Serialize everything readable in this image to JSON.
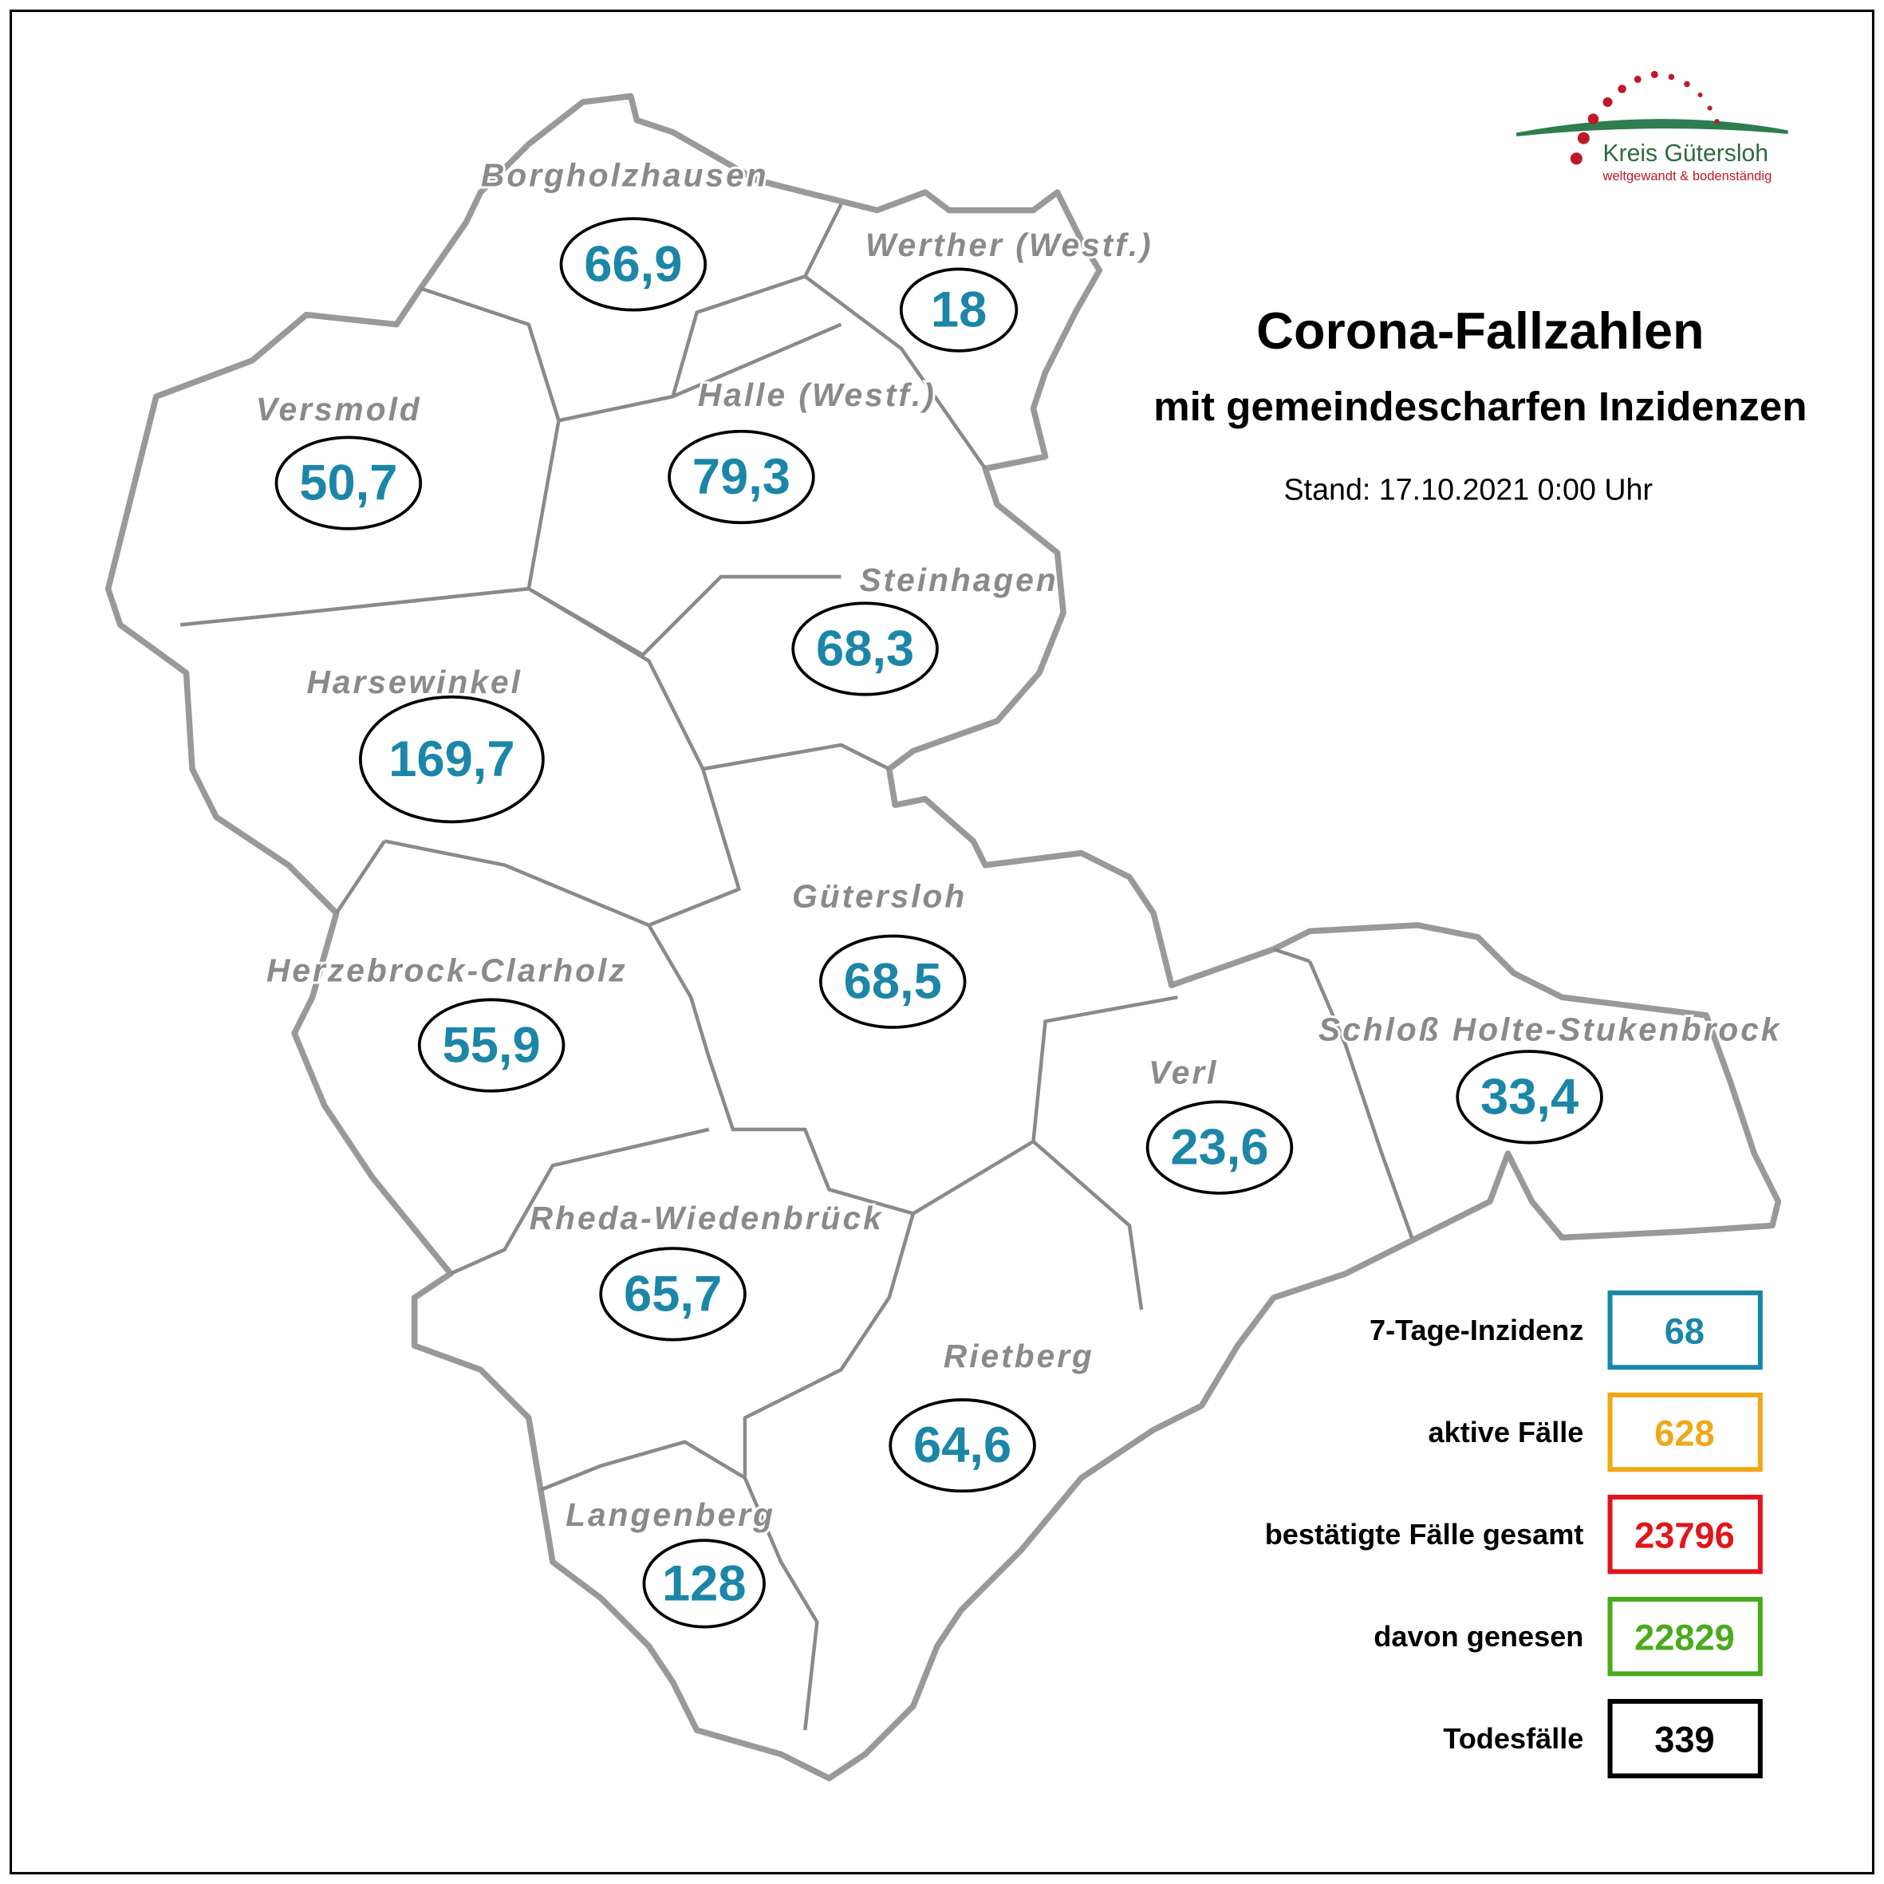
{
  "header": {
    "title": "Corona-Fallzahlen",
    "subtitle": "mit gemeindescharfen Inzidenzen",
    "stand": "Stand: 17.10.2021 0:00 Uhr"
  },
  "logo": {
    "name": "Kreis Gütersloh",
    "slogan": "weltgewandt & bodenständig"
  },
  "region_color": "#1b86a8",
  "regions": [
    {
      "name": "Borgholzhausen",
      "incidence": "66,9"
    },
    {
      "name": "Werther (Westf.)",
      "incidence": "18"
    },
    {
      "name": "Versmold",
      "incidence": "50,7"
    },
    {
      "name": "Halle (Westf.)",
      "incidence": "79,3"
    },
    {
      "name": "Steinhagen",
      "incidence": "68,3"
    },
    {
      "name": "Harsewinkel",
      "incidence": "169,7"
    },
    {
      "name": "Gütersloh",
      "incidence": "68,5"
    },
    {
      "name": "Herzebrock-Clarholz",
      "incidence": "55,9"
    },
    {
      "name": "Verl",
      "incidence": "23,6"
    },
    {
      "name": "Schloß Holte-Stukenbrock",
      "incidence": "33,4"
    },
    {
      "name": "Rheda-Wiedenbrück",
      "incidence": "65,7"
    },
    {
      "name": "Rietberg",
      "incidence": "64,6"
    },
    {
      "name": "Langenberg",
      "incidence": "128"
    }
  ],
  "legend": [
    {
      "label": "7-Tage-Inzidenz",
      "value": 68,
      "color": "#1b86a8"
    },
    {
      "label": "aktive Fälle",
      "value": 628,
      "color": "#f0a818"
    },
    {
      "label": "bestätigte Fälle gesamt",
      "value": 23796,
      "color": "#e0161b"
    },
    {
      "label": "davon genesen",
      "value": 22829,
      "color": "#4aaa1c"
    },
    {
      "label": "Todesfälle",
      "value": 339,
      "color": "#000000"
    }
  ]
}
